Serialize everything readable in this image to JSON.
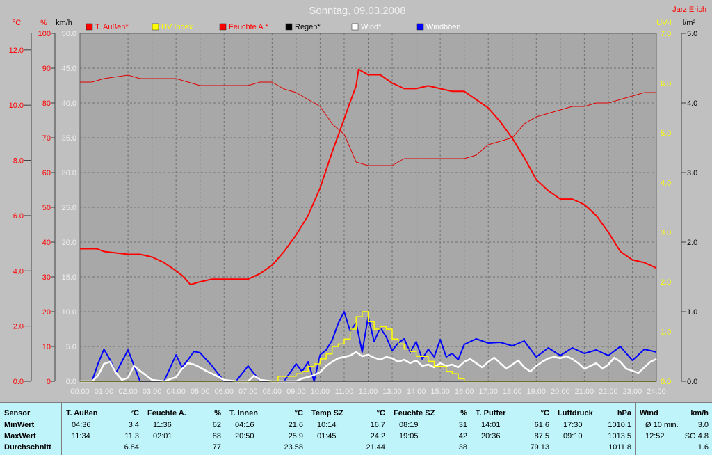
{
  "header": {
    "title": "Sonntag, 09.03.2008",
    "author": "Jarz Erich"
  },
  "colors": {
    "temperature": "#ff0000",
    "humidity": "#e00000",
    "uv": "#ffff00",
    "rain": "#000000",
    "wind": "#ffffff",
    "gusts": "#0000ff"
  },
  "legend": [
    {
      "label": "T. Außen*",
      "color": "#ff0000",
      "label_color": "#ff0000"
    },
    {
      "label": "UV Index",
      "color": "#ffff00",
      "label_color": "#ffff00"
    },
    {
      "label": "Feuchte A.*",
      "color": "#ff0000",
      "label_color": "#ff0000"
    },
    {
      "label": "Regen*",
      "color": "#000000",
      "label_color": "#000000"
    },
    {
      "label": "Wind*",
      "color": "#ffffff",
      "label_color": "#ffffff"
    },
    {
      "label": "Windböen",
      "color": "#0000ff",
      "label_color": "#ffffff"
    }
  ],
  "axes": {
    "temp": {
      "unit": "°C",
      "ticks": [
        "0.0",
        "2.0",
        "4.0",
        "6.0",
        "8.0",
        "10.0",
        "12.0"
      ],
      "range": [
        0,
        12.6
      ]
    },
    "humidity": {
      "unit": "%",
      "ticks": [
        "0",
        "10",
        "20",
        "30",
        "40",
        "50",
        "60",
        "70",
        "80",
        "90",
        "100"
      ],
      "range": [
        0,
        100
      ]
    },
    "wind": {
      "unit": "km/h",
      "ticks": [
        "0.0",
        "5.0",
        "10.0",
        "15.0",
        "20.0",
        "25.0",
        "30.0",
        "35.0",
        "40.0",
        "45.0",
        "50.0"
      ],
      "range": [
        0,
        50
      ]
    },
    "uv": {
      "unit": "UV-I",
      "ticks": [
        "0.0",
        "1.0",
        "2.0",
        "3.0",
        "4.0",
        "5.0",
        "6.0",
        "7.0"
      ],
      "range": [
        0,
        7
      ]
    },
    "rain": {
      "unit": "l/m²",
      "ticks": [
        "0.0",
        "1.0",
        "2.0",
        "3.0",
        "4.0",
        "5.0"
      ],
      "range": [
        0,
        5
      ]
    },
    "time": {
      "ticks": [
        "00:00",
        "01:00",
        "02:00",
        "03:00",
        "04:00",
        "05:00",
        "06:00",
        "07:00",
        "08:00",
        "09:00",
        "10:00",
        "11:00",
        "12:00",
        "13:00",
        "14:00",
        "15:00",
        "16:00",
        "17:00",
        "18:00",
        "19:00",
        "20:00",
        "21:00",
        "22:00",
        "23:00",
        "24:00"
      ]
    }
  },
  "chart_data": {
    "type": "line",
    "title": "Sonntag, 09.03.2008",
    "x_unit": "hour of day",
    "grid": true,
    "legend_position": "top",
    "series": [
      {
        "name": "T. Außen*",
        "axis": "temp",
        "unit": "°C",
        "x": [
          0,
          0.7,
          1,
          2,
          2.5,
          3,
          3.5,
          4,
          4.3,
          4.6,
          5,
          5.5,
          6,
          7,
          7.5,
          8,
          8.5,
          9,
          9.5,
          10,
          10.5,
          11,
          11.2,
          11.5,
          11.6,
          12,
          12.5,
          13,
          13.5,
          14,
          14.5,
          15,
          15.5,
          16,
          16.5,
          17,
          17.5,
          18,
          18.5,
          19,
          19.5,
          20,
          20.5,
          21,
          21.5,
          22,
          22.5,
          23,
          23.5,
          24
        ],
        "values": [
          4.8,
          4.8,
          4.7,
          4.6,
          4.6,
          4.5,
          4.3,
          4.0,
          3.8,
          3.5,
          3.6,
          3.7,
          3.7,
          3.7,
          3.9,
          4.2,
          4.7,
          5.3,
          6.0,
          7.0,
          8.3,
          9.5,
          10.0,
          10.7,
          11.3,
          11.1,
          11.1,
          10.8,
          10.6,
          10.6,
          10.7,
          10.6,
          10.5,
          10.5,
          10.2,
          9.9,
          9.4,
          8.8,
          8.1,
          7.3,
          6.9,
          6.6,
          6.6,
          6.4,
          6.0,
          5.4,
          4.7,
          4.4,
          4.3,
          4.1
        ]
      },
      {
        "name": "Feuchte A.*",
        "axis": "humidity",
        "unit": "%",
        "x": [
          0,
          0.5,
          1,
          2,
          2.5,
          3,
          4,
          5,
          6,
          7,
          7.5,
          8,
          8.5,
          9,
          9.5,
          10,
          10.5,
          11,
          11.5,
          12,
          12.5,
          13,
          13.5,
          14,
          14.5,
          15,
          15.5,
          16,
          16.5,
          17,
          17.5,
          18,
          18.5,
          19,
          19.5,
          20,
          20.5,
          21,
          21.5,
          22,
          22.5,
          23,
          23.5,
          24
        ],
        "values": [
          86,
          86,
          87,
          88,
          87,
          87,
          87,
          85,
          85,
          85,
          86,
          86,
          84,
          83,
          81,
          79,
          74,
          71,
          63,
          62,
          62,
          62,
          64,
          64,
          64,
          64,
          64,
          64,
          65,
          68,
          69,
          70,
          74,
          76,
          77,
          78,
          79,
          79,
          80,
          80,
          81,
          82,
          83,
          83
        ]
      },
      {
        "name": "Windböen",
        "axis": "wind",
        "unit": "km/h",
        "x": [
          0,
          0.5,
          0.75,
          1,
          1.25,
          1.5,
          2,
          2.5,
          3,
          3.5,
          4,
          4.25,
          4.5,
          4.75,
          5,
          5.5,
          6,
          6.5,
          7,
          7.5,
          8,
          8.5,
          9,
          9.25,
          9.5,
          9.75,
          10,
          10.25,
          10.5,
          10.75,
          11,
          11.25,
          11.5,
          11.75,
          12,
          12.25,
          12.5,
          12.75,
          13,
          13.25,
          13.5,
          13.75,
          14,
          14.25,
          14.5,
          14.75,
          15,
          15.25,
          15.5,
          15.75,
          16,
          16.5,
          17,
          17.5,
          18,
          18.5,
          19,
          19.5,
          20,
          20.5,
          21,
          21.5,
          22,
          22.5,
          23,
          23.5,
          24
        ],
        "values": [
          0,
          0,
          2.5,
          4.6,
          3.1,
          1.2,
          4.5,
          0,
          0,
          0,
          3.8,
          2.0,
          3.1,
          4.3,
          4.1,
          2.2,
          0,
          0,
          2.2,
          0,
          0,
          0,
          2.5,
          1.4,
          2.8,
          0,
          3.8,
          4.5,
          5.9,
          8.3,
          10.0,
          7.2,
          8.4,
          4.2,
          9.3,
          5.7,
          7.7,
          6.4,
          4.4,
          5.5,
          6.1,
          4.2,
          5.7,
          3.2,
          4.6,
          3.5,
          6.0,
          3.5,
          4.0,
          3.1,
          5.3,
          6.1,
          5.5,
          5.6,
          5.1,
          5.8,
          3.5,
          4.8,
          3.7,
          4.8,
          4.0,
          4.5,
          3.7,
          5.0,
          3.0,
          4.6,
          4.2
        ]
      },
      {
        "name": "Wind*",
        "axis": "wind",
        "unit": "km/h",
        "x": [
          0,
          0.5,
          0.75,
          1,
          1.25,
          1.5,
          1.75,
          2,
          2.25,
          2.5,
          3,
          3.5,
          4,
          4.25,
          4.5,
          4.75,
          5,
          5.25,
          5.5,
          6,
          6.5,
          7,
          7.25,
          7.5,
          8,
          8.5,
          9,
          9.25,
          9.5,
          9.75,
          10,
          10.25,
          10.5,
          10.75,
          11,
          11.25,
          11.5,
          11.75,
          12,
          12.25,
          12.5,
          12.75,
          13,
          13.25,
          13.5,
          13.75,
          14,
          14.25,
          14.5,
          14.75,
          15,
          15.25,
          15.5,
          15.75,
          16,
          16.25,
          16.5,
          16.75,
          17,
          17.25,
          17.5,
          17.75,
          18,
          18.25,
          18.5,
          18.75,
          19,
          19.25,
          19.5,
          19.75,
          20,
          20.25,
          20.5,
          20.75,
          21,
          21.25,
          21.5,
          21.75,
          22,
          22.25,
          22.5,
          22.75,
          23,
          23.25,
          23.5,
          23.75,
          24
        ],
        "values": [
          0,
          0,
          0.8,
          2.5,
          2.8,
          1.2,
          0.2,
          0.5,
          2.2,
          1.5,
          0.2,
          0,
          0.6,
          1.8,
          2.6,
          2.4,
          2.0,
          1.5,
          1.1,
          0.2,
          0,
          0,
          0.8,
          0.2,
          0,
          0,
          0,
          0.4,
          0.6,
          0.9,
          1.3,
          2.2,
          2.8,
          3.3,
          3.5,
          3.7,
          4.2,
          3.6,
          3.8,
          3.4,
          3.1,
          3.5,
          3.3,
          2.8,
          3.1,
          2.6,
          3.0,
          2.2,
          2.4,
          2.0,
          2.6,
          2.2,
          2.4,
          2.0,
          2.8,
          3.2,
          2.6,
          2.0,
          2.8,
          3.4,
          2.6,
          1.8,
          2.4,
          3.0,
          2.0,
          1.4,
          2.2,
          2.8,
          3.3,
          3.5,
          3.3,
          3.6,
          3.2,
          2.6,
          1.8,
          2.2,
          2.6,
          1.8,
          2.4,
          3.4,
          2.8,
          1.8,
          1.5,
          1.2,
          2.0,
          2.8,
          3.2
        ]
      },
      {
        "name": "UV Index",
        "axis": "uv",
        "unit": "UV-I",
        "step": true,
        "x": [
          0,
          8.25,
          8.5,
          8.75,
          9.0,
          9.25,
          9.5,
          9.75,
          10.0,
          10.25,
          10.5,
          10.75,
          11.0,
          11.25,
          11.5,
          11.75,
          12.0,
          12.25,
          12.5,
          12.75,
          13.0,
          13.25,
          13.5,
          13.75,
          14.0,
          14.25,
          14.5,
          14.75,
          15.0,
          15.25,
          15.5,
          15.75,
          16.0,
          24
        ],
        "values": [
          0,
          0.1,
          0.1,
          0.1,
          0.15,
          0.2,
          0.3,
          0.35,
          0.45,
          0.55,
          0.7,
          0.75,
          0.85,
          1.05,
          1.3,
          1.4,
          1.2,
          1.05,
          1.1,
          1.05,
          0.85,
          0.75,
          0.65,
          0.6,
          0.5,
          0.5,
          0.4,
          0.3,
          0.3,
          0.2,
          0.15,
          0.05,
          0,
          0
        ]
      },
      {
        "name": "Regen*",
        "axis": "rain",
        "unit": "l/m²",
        "x": [
          0,
          24
        ],
        "values": [
          0,
          0
        ]
      }
    ]
  },
  "footer": {
    "sensor_header": "Sensor",
    "row_labels": [
      "MinWert",
      "MaxWert",
      "Durchschnitt"
    ],
    "columns": [
      {
        "name": "T. Außen",
        "unit": "°C",
        "rows": [
          [
            "04:36",
            "3.4"
          ],
          [
            "11:34",
            "11.3"
          ],
          [
            "",
            "6.84"
          ]
        ]
      },
      {
        "name": "Feuchte A.",
        "unit": "%",
        "rows": [
          [
            "11:36",
            "62"
          ],
          [
            "02:01",
            "88"
          ],
          [
            "",
            "77"
          ]
        ]
      },
      {
        "name": "T. Innen",
        "unit": "°C",
        "rows": [
          [
            "04:16",
            "21.6"
          ],
          [
            "20:50",
            "25.9"
          ],
          [
            "",
            "23.58"
          ]
        ]
      },
      {
        "name": "Temp SZ",
        "unit": "°C",
        "rows": [
          [
            "10:14",
            "16.7"
          ],
          [
            "01:45",
            "24.2"
          ],
          [
            "",
            "21.44"
          ]
        ]
      },
      {
        "name": "Feuchte SZ",
        "unit": "%",
        "rows": [
          [
            "08:19",
            "31"
          ],
          [
            "19:05",
            "42"
          ],
          [
            "",
            "38"
          ]
        ]
      },
      {
        "name": "T. Puffer",
        "unit": "°C",
        "rows": [
          [
            "14:01",
            "61.6"
          ],
          [
            "20:36",
            "87.5"
          ],
          [
            "",
            "79.13"
          ]
        ]
      },
      {
        "name": "Luftdruck",
        "unit": "hPa",
        "rows": [
          [
            "17:30",
            "1010.1"
          ],
          [
            "09:10",
            "1013.5"
          ],
          [
            "",
            "1011.8"
          ]
        ]
      },
      {
        "name": "Wind",
        "unit": "km/h",
        "rows": [
          [
            "Ø 10 min.",
            "3.0"
          ],
          [
            "12:52",
            "SO 4.8"
          ],
          [
            "",
            "1.6"
          ]
        ]
      }
    ]
  }
}
